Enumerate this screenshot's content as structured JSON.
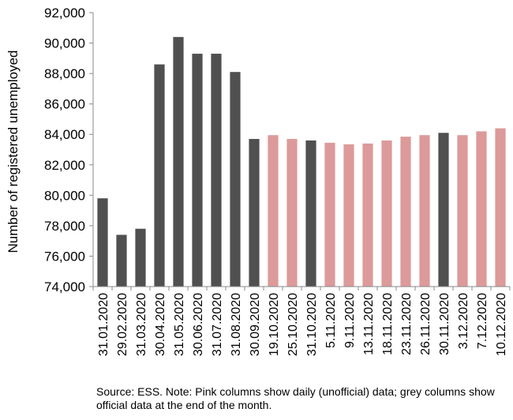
{
  "chart_data": {
    "type": "bar",
    "title": "",
    "xlabel": "",
    "ylabel": "Number of registered unemployed",
    "ylim": [
      74000,
      92000
    ],
    "y_ticks": [
      "74,000",
      "76,000",
      "78,000",
      "80,000",
      "82,000",
      "84,000",
      "86,000",
      "88,000",
      "90,000",
      "92,000"
    ],
    "y_tick_values": [
      74000,
      76000,
      78000,
      80000,
      82000,
      84000,
      86000,
      88000,
      90000,
      92000
    ],
    "categories": [
      "31.01.2020",
      "29.02.2020",
      "31.03.2020",
      "30.04.2020",
      "31.05.2020",
      "30.06.2020",
      "31.07.2020",
      "31.08.2020",
      "30.09.2020",
      "19.10.2020",
      "25.10.2020",
      "31.10.2020",
      "5.11.2020",
      "9.11.2020",
      "13.11.2020",
      "18.11.2020",
      "23.11.2020",
      "26.11.2020",
      "30.11.2020",
      "3.12.2020",
      "7.12.2020",
      "10.12.2020"
    ],
    "values": [
      79800,
      77400,
      77800,
      88600,
      90400,
      89300,
      89300,
      88100,
      83700,
      83950,
      83700,
      83600,
      83450,
      83350,
      83400,
      83600,
      83850,
      83950,
      84100,
      83950,
      84200,
      84400
    ],
    "bar_kind": [
      "official",
      "official",
      "official",
      "official",
      "official",
      "official",
      "official",
      "official",
      "official",
      "daily",
      "daily",
      "official",
      "daily",
      "daily",
      "daily",
      "daily",
      "daily",
      "daily",
      "official",
      "daily",
      "daily",
      "daily"
    ],
    "colors": {
      "official": "#505050",
      "daily": "#dc9a9a"
    },
    "grid": false,
    "legend": "none"
  },
  "source_note": "Source: ESS. Note: Pink columns show daily (unofficial) data; grey columns show official data at the end of the month."
}
